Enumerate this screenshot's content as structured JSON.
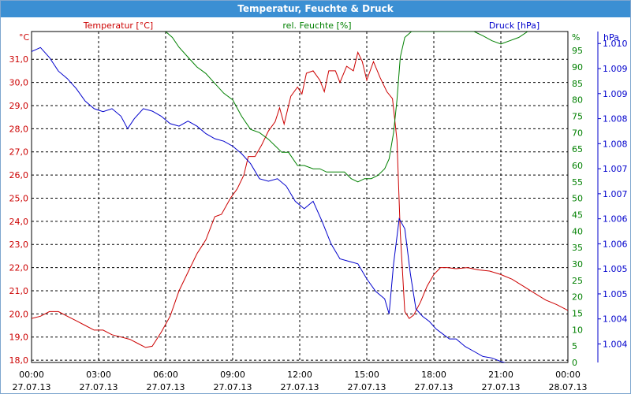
{
  "window": {
    "title": "Temperatur, Feuchte & Druck"
  },
  "chart_data": {
    "type": "line",
    "title": "Temperatur, Feuchte & Druck",
    "x_ticks": [
      {
        "time": "00:00",
        "date": "27.07.13"
      },
      {
        "time": "03:00",
        "date": "27.07.13"
      },
      {
        "time": "06:00",
        "date": "27.07.13"
      },
      {
        "time": "09:00",
        "date": "27.07.13"
      },
      {
        "time": "12:00",
        "date": "27.07.13"
      },
      {
        "time": "15:00",
        "date": "27.07.13"
      },
      {
        "time": "18:00",
        "date": "27.07.13"
      },
      {
        "time": "21:00",
        "date": "27.07.13"
      },
      {
        "time": "00:00",
        "date": "28.07.13"
      }
    ],
    "xlim_hours": [
      0,
      24
    ],
    "grid": true,
    "axes": {
      "temperature": {
        "label": "Temperatur [°C]",
        "unit": "°C",
        "color": "#cc0000",
        "side": "left",
        "ylim": [
          17.9,
          32.2
        ],
        "ticks": [
          "18,0",
          "19,0",
          "20,0",
          "21,0",
          "22,0",
          "23,0",
          "24,0",
          "25,0",
          "26,0",
          "27,0",
          "28,0",
          "29,0",
          "30,0",
          "31,0"
        ]
      },
      "humidity": {
        "label": "rel. Feuchte [%]",
        "unit": "%",
        "color": "#008000",
        "side": "right",
        "ylim": [
          0,
          100.8
        ],
        "ticks": [
          "0",
          "5",
          "10",
          "15",
          "20",
          "25",
          "30",
          "35",
          "40",
          "45",
          "50",
          "55",
          "60",
          "65",
          "70",
          "75",
          "80",
          "85",
          "90",
          "95"
        ]
      },
      "pressure": {
        "label": "Druck [hPa]",
        "unit": "hPa",
        "color": "#0000cc",
        "side": "right",
        "ylim": [
          1003.63,
          1010.24
        ],
        "ticks": [
          {
            "value": 1004.0,
            "label": "1.004"
          },
          {
            "value": 1004.5,
            "label": "1.004"
          },
          {
            "value": 1005.0,
            "label": "1.005"
          },
          {
            "value": 1005.5,
            "label": "1.005"
          },
          {
            "value": 1006.0,
            "label": "1.006"
          },
          {
            "value": 1006.5,
            "label": "1.006"
          },
          {
            "value": 1007.0,
            "label": "1.007"
          },
          {
            "value": 1007.5,
            "label": "1.007"
          },
          {
            "value": 1008.0,
            "label": "1.008"
          },
          {
            "value": 1008.5,
            "label": "1.008"
          },
          {
            "value": 1009.0,
            "label": "1.009"
          },
          {
            "value": 1009.5,
            "label": "1.009"
          },
          {
            "value": 1010.0,
            "label": "1.010"
          }
        ]
      }
    },
    "series": [
      {
        "name": "Temperatur [°C]",
        "axis": "temperature",
        "color": "#cc0000",
        "points": [
          [
            0,
            19.8
          ],
          [
            0.4,
            19.9
          ],
          [
            0.8,
            20.1
          ],
          [
            1.2,
            20.1
          ],
          [
            1.6,
            19.9
          ],
          [
            2.0,
            19.7
          ],
          [
            2.4,
            19.5
          ],
          [
            2.8,
            19.3
          ],
          [
            3.2,
            19.3
          ],
          [
            3.6,
            19.1
          ],
          [
            4.0,
            19.0
          ],
          [
            4.4,
            18.9
          ],
          [
            4.8,
            18.7
          ],
          [
            5.1,
            18.55
          ],
          [
            5.4,
            18.6
          ],
          [
            5.8,
            19.2
          ],
          [
            6.2,
            19.9
          ],
          [
            6.6,
            21.0
          ],
          [
            7.0,
            21.8
          ],
          [
            7.4,
            22.6
          ],
          [
            7.8,
            23.2
          ],
          [
            8.2,
            24.2
          ],
          [
            8.5,
            24.3
          ],
          [
            8.9,
            25.0
          ],
          [
            9.2,
            25.4
          ],
          [
            9.5,
            26.0
          ],
          [
            9.7,
            26.8
          ],
          [
            10.0,
            26.8
          ],
          [
            10.3,
            27.3
          ],
          [
            10.6,
            27.9
          ],
          [
            10.9,
            28.3
          ],
          [
            11.1,
            28.9
          ],
          [
            11.3,
            28.2
          ],
          [
            11.6,
            29.4
          ],
          [
            11.9,
            29.8
          ],
          [
            12.1,
            29.5
          ],
          [
            12.3,
            30.4
          ],
          [
            12.6,
            30.5
          ],
          [
            12.9,
            30.1
          ],
          [
            13.1,
            29.6
          ],
          [
            13.3,
            30.5
          ],
          [
            13.6,
            30.5
          ],
          [
            13.8,
            30.0
          ],
          [
            14.1,
            30.7
          ],
          [
            14.4,
            30.5
          ],
          [
            14.6,
            31.3
          ],
          [
            14.8,
            30.9
          ],
          [
            15.0,
            30.1
          ],
          [
            15.3,
            30.9
          ],
          [
            15.6,
            30.2
          ],
          [
            15.9,
            29.6
          ],
          [
            16.15,
            29.3
          ],
          [
            16.35,
            27.5
          ],
          [
            16.5,
            23.5
          ],
          [
            16.7,
            20.1
          ],
          [
            16.9,
            19.8
          ],
          [
            17.1,
            19.95
          ],
          [
            17.4,
            20.5
          ],
          [
            17.7,
            21.2
          ],
          [
            18.0,
            21.7
          ],
          [
            18.3,
            22.0
          ],
          [
            18.6,
            22.0
          ],
          [
            19.0,
            21.95
          ],
          [
            19.5,
            22.0
          ],
          [
            20.0,
            21.9
          ],
          [
            20.5,
            21.85
          ],
          [
            21.0,
            21.7
          ],
          [
            21.5,
            21.5
          ],
          [
            22.0,
            21.2
          ],
          [
            22.5,
            20.9
          ],
          [
            23.0,
            20.6
          ],
          [
            23.5,
            20.4
          ],
          [
            24.0,
            20.15
          ]
        ]
      },
      {
        "name": "rel. Feuchte [%]",
        "axis": "humidity",
        "color": "#008000",
        "points": [
          [
            6.0,
            100.8
          ],
          [
            6.3,
            99
          ],
          [
            6.6,
            96
          ],
          [
            7.0,
            93
          ],
          [
            7.4,
            90
          ],
          [
            7.8,
            88
          ],
          [
            8.2,
            85
          ],
          [
            8.6,
            82
          ],
          [
            9.0,
            80
          ],
          [
            9.4,
            75
          ],
          [
            9.8,
            71
          ],
          [
            10.2,
            70
          ],
          [
            10.6,
            68
          ],
          [
            10.9,
            66
          ],
          [
            11.2,
            64
          ],
          [
            11.5,
            64
          ],
          [
            11.9,
            60
          ],
          [
            12.2,
            60
          ],
          [
            12.6,
            59
          ],
          [
            12.9,
            59
          ],
          [
            13.2,
            58
          ],
          [
            13.6,
            58
          ],
          [
            14.0,
            58
          ],
          [
            14.3,
            56
          ],
          [
            14.6,
            55
          ],
          [
            14.9,
            56
          ],
          [
            15.2,
            56
          ],
          [
            15.5,
            57
          ],
          [
            15.8,
            59
          ],
          [
            16.0,
            62
          ],
          [
            16.2,
            70
          ],
          [
            16.35,
            80
          ],
          [
            16.5,
            93
          ],
          [
            16.7,
            99
          ],
          [
            17.0,
            100.8
          ],
          [
            19.8,
            100.8
          ],
          [
            20.2,
            99.5
          ],
          [
            20.6,
            98
          ],
          [
            21.0,
            97
          ],
          [
            21.4,
            98
          ],
          [
            21.8,
            99
          ],
          [
            22.2,
            100.8
          ]
        ]
      },
      {
        "name": "Druck [hPa]",
        "axis": "pressure",
        "color": "#0000cc",
        "points": [
          [
            0,
            1009.84
          ],
          [
            0.4,
            1009.92
          ],
          [
            0.8,
            1009.72
          ],
          [
            1.2,
            1009.45
          ],
          [
            1.6,
            1009.3
          ],
          [
            2.0,
            1009.1
          ],
          [
            2.4,
            1008.85
          ],
          [
            2.8,
            1008.7
          ],
          [
            3.2,
            1008.64
          ],
          [
            3.6,
            1008.7
          ],
          [
            4.0,
            1008.55
          ],
          [
            4.3,
            1008.3
          ],
          [
            4.6,
            1008.5
          ],
          [
            5.0,
            1008.7
          ],
          [
            5.4,
            1008.65
          ],
          [
            5.8,
            1008.55
          ],
          [
            6.2,
            1008.4
          ],
          [
            6.6,
            1008.35
          ],
          [
            7.0,
            1008.45
          ],
          [
            7.4,
            1008.35
          ],
          [
            7.8,
            1008.2
          ],
          [
            8.2,
            1008.1
          ],
          [
            8.6,
            1008.05
          ],
          [
            9.0,
            1007.95
          ],
          [
            9.4,
            1007.8
          ],
          [
            9.8,
            1007.6
          ],
          [
            10.2,
            1007.3
          ],
          [
            10.6,
            1007.25
          ],
          [
            11.0,
            1007.3
          ],
          [
            11.4,
            1007.15
          ],
          [
            11.8,
            1006.85
          ],
          [
            12.2,
            1006.7
          ],
          [
            12.6,
            1006.85
          ],
          [
            13.0,
            1006.45
          ],
          [
            13.4,
            1006.0
          ],
          [
            13.8,
            1005.7
          ],
          [
            14.2,
            1005.65
          ],
          [
            14.6,
            1005.6
          ],
          [
            15.0,
            1005.3
          ],
          [
            15.4,
            1005.05
          ],
          [
            15.8,
            1004.9
          ],
          [
            16.0,
            1004.6
          ],
          [
            16.2,
            1005.6
          ],
          [
            16.45,
            1006.5
          ],
          [
            16.7,
            1006.3
          ],
          [
            16.95,
            1005.4
          ],
          [
            17.2,
            1004.7
          ],
          [
            17.5,
            1004.55
          ],
          [
            17.8,
            1004.45
          ],
          [
            18.1,
            1004.3
          ],
          [
            18.4,
            1004.2
          ],
          [
            18.7,
            1004.1
          ],
          [
            19.0,
            1004.1
          ],
          [
            19.4,
            1003.95
          ],
          [
            19.8,
            1003.85
          ],
          [
            20.2,
            1003.75
          ],
          [
            20.6,
            1003.72
          ],
          [
            21.0,
            1003.65
          ],
          [
            21.4,
            1003.6
          ],
          [
            21.8,
            1003.55
          ],
          [
            22.2,
            1003.5
          ],
          [
            22.6,
            1003.4
          ],
          [
            23.0,
            1003.35
          ],
          [
            23.4,
            1003.3
          ],
          [
            23.7,
            1003.32
          ],
          [
            24.0,
            1003.2
          ]
        ]
      }
    ]
  }
}
